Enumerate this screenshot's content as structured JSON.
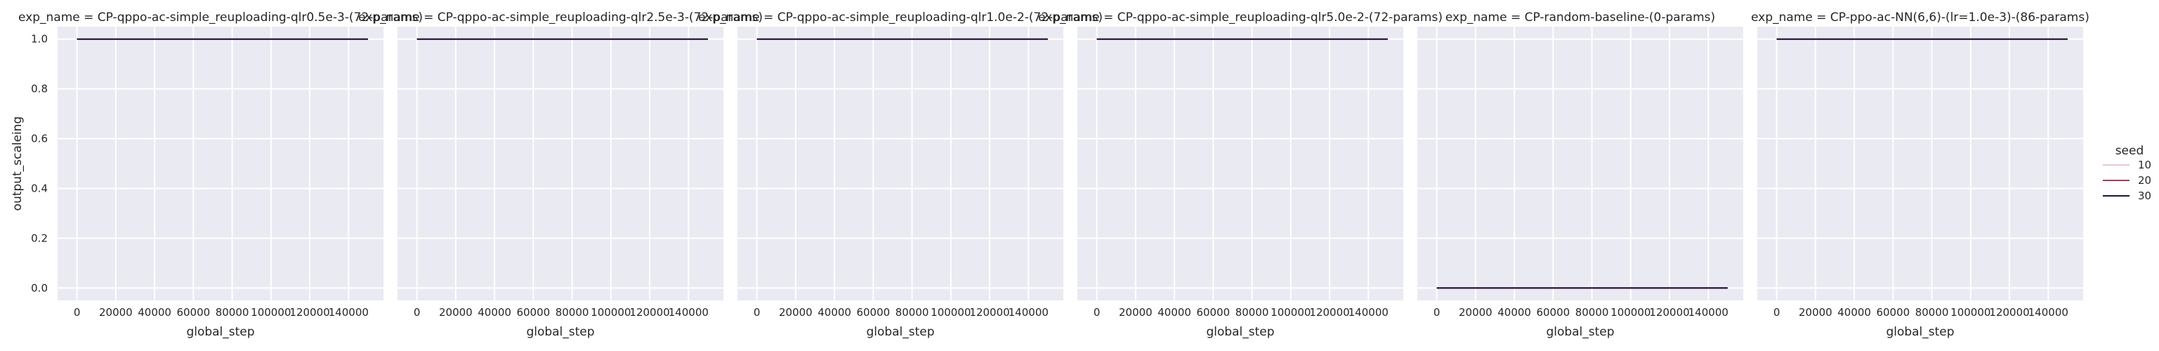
{
  "figure": {
    "legend": {
      "title": "seed",
      "placement": "right",
      "entries": [
        {
          "label": "10",
          "color": "#e8c6cc"
        },
        {
          "label": "20",
          "color": "#a53c60"
        },
        {
          "label": "30",
          "color": "#20123a"
        }
      ]
    }
  },
  "chart_data": [
    {
      "type": "line",
      "title": "exp_name = CP-qppo-ac-simple_reuploading-qlr0.5e-3-(72-params)",
      "xlabel": "global_step",
      "ylabel": "output_scaleing",
      "xlim": [
        -10000,
        158000
      ],
      "ylim": [
        -0.05,
        1.05
      ],
      "xticks": [
        0,
        20000,
        40000,
        60000,
        80000,
        100000,
        120000,
        140000
      ],
      "yticks": [
        0.0,
        0.2,
        0.4,
        0.6,
        0.8,
        1.0
      ],
      "ytick_labels": [
        "0.0",
        "0.2",
        "0.4",
        "0.6",
        "0.8",
        "1.0"
      ],
      "grid": true,
      "series": [
        {
          "name": "10",
          "x": [
            0,
            150000
          ],
          "y": [
            1.0,
            1.0
          ]
        },
        {
          "name": "20",
          "x": [
            0,
            150000
          ],
          "y": [
            1.0,
            1.0
          ]
        },
        {
          "name": "30",
          "x": [
            0,
            150000
          ],
          "y": [
            1.0,
            1.0
          ]
        }
      ]
    },
    {
      "type": "line",
      "title": "exp_name = CP-qppo-ac-simple_reuploading-qlr2.5e-3-(72-params)",
      "xlabel": "global_step",
      "ylabel": "",
      "xlim": [
        -10000,
        158000
      ],
      "ylim": [
        -0.05,
        1.05
      ],
      "xticks": [
        0,
        20000,
        40000,
        60000,
        80000,
        100000,
        120000,
        140000
      ],
      "yticks": [
        0.0,
        0.2,
        0.4,
        0.6,
        0.8,
        1.0
      ],
      "grid": true,
      "series": [
        {
          "name": "10",
          "x": [
            0,
            150000
          ],
          "y": [
            1.0,
            1.0
          ]
        },
        {
          "name": "20",
          "x": [
            0,
            150000
          ],
          "y": [
            1.0,
            1.0
          ]
        },
        {
          "name": "30",
          "x": [
            0,
            150000
          ],
          "y": [
            1.0,
            1.0
          ]
        }
      ]
    },
    {
      "type": "line",
      "title": "exp_name = CP-qppo-ac-simple_reuploading-qlr1.0e-2-(72-params)",
      "xlabel": "global_step",
      "ylabel": "",
      "xlim": [
        -10000,
        158000
      ],
      "ylim": [
        -0.05,
        1.05
      ],
      "xticks": [
        0,
        20000,
        40000,
        60000,
        80000,
        100000,
        120000,
        140000
      ],
      "yticks": [
        0.0,
        0.2,
        0.4,
        0.6,
        0.8,
        1.0
      ],
      "grid": true,
      "series": [
        {
          "name": "10",
          "x": [
            0,
            150000
          ],
          "y": [
            1.0,
            1.0
          ]
        },
        {
          "name": "20",
          "x": [
            0,
            150000
          ],
          "y": [
            1.0,
            1.0
          ]
        },
        {
          "name": "30",
          "x": [
            0,
            150000
          ],
          "y": [
            1.0,
            1.0
          ]
        }
      ]
    },
    {
      "type": "line",
      "title": "exp_name = CP-qppo-ac-simple_reuploading-qlr5.0e-2-(72-params)",
      "xlabel": "global_step",
      "ylabel": "",
      "xlim": [
        -10000,
        158000
      ],
      "ylim": [
        -0.05,
        1.05
      ],
      "xticks": [
        0,
        20000,
        40000,
        60000,
        80000,
        100000,
        120000,
        140000
      ],
      "yticks": [
        0.0,
        0.2,
        0.4,
        0.6,
        0.8,
        1.0
      ],
      "grid": true,
      "series": [
        {
          "name": "10",
          "x": [
            0,
            150000
          ],
          "y": [
            1.0,
            1.0
          ]
        },
        {
          "name": "20",
          "x": [
            0,
            150000
          ],
          "y": [
            1.0,
            1.0
          ]
        },
        {
          "name": "30",
          "x": [
            0,
            150000
          ],
          "y": [
            1.0,
            1.0
          ]
        }
      ]
    },
    {
      "type": "line",
      "title": "exp_name = CP-random-baseline-(0-params)",
      "xlabel": "global_step",
      "ylabel": "",
      "xlim": [
        -10000,
        158000
      ],
      "ylim": [
        -0.05,
        1.05
      ],
      "xticks": [
        0,
        20000,
        40000,
        60000,
        80000,
        100000,
        120000,
        140000
      ],
      "yticks": [
        0.0,
        0.2,
        0.4,
        0.6,
        0.8,
        1.0
      ],
      "grid": true,
      "series": [
        {
          "name": "10",
          "x": [
            0,
            150000
          ],
          "y": [
            0.0,
            0.0
          ]
        },
        {
          "name": "20",
          "x": [
            0,
            150000
          ],
          "y": [
            0.0,
            0.0
          ]
        },
        {
          "name": "30",
          "x": [
            0,
            150000
          ],
          "y": [
            0.0,
            0.0
          ]
        }
      ]
    },
    {
      "type": "line",
      "title": "exp_name = CP-ppo-ac-NN(6,6)-(lr=1.0e-3)-(86-params)",
      "xlabel": "global_step",
      "ylabel": "",
      "xlim": [
        -10000,
        158000
      ],
      "ylim": [
        -0.05,
        1.05
      ],
      "xticks": [
        0,
        20000,
        40000,
        60000,
        80000,
        100000,
        120000,
        140000
      ],
      "yticks": [
        0.0,
        0.2,
        0.4,
        0.6,
        0.8,
        1.0
      ],
      "grid": true,
      "series": [
        {
          "name": "10",
          "x": [
            0,
            150000
          ],
          "y": [
            1.0,
            1.0
          ]
        },
        {
          "name": "20",
          "x": [
            0,
            150000
          ],
          "y": [
            1.0,
            1.0
          ]
        },
        {
          "name": "30",
          "x": [
            0,
            150000
          ],
          "y": [
            1.0,
            1.0
          ]
        }
      ]
    }
  ]
}
